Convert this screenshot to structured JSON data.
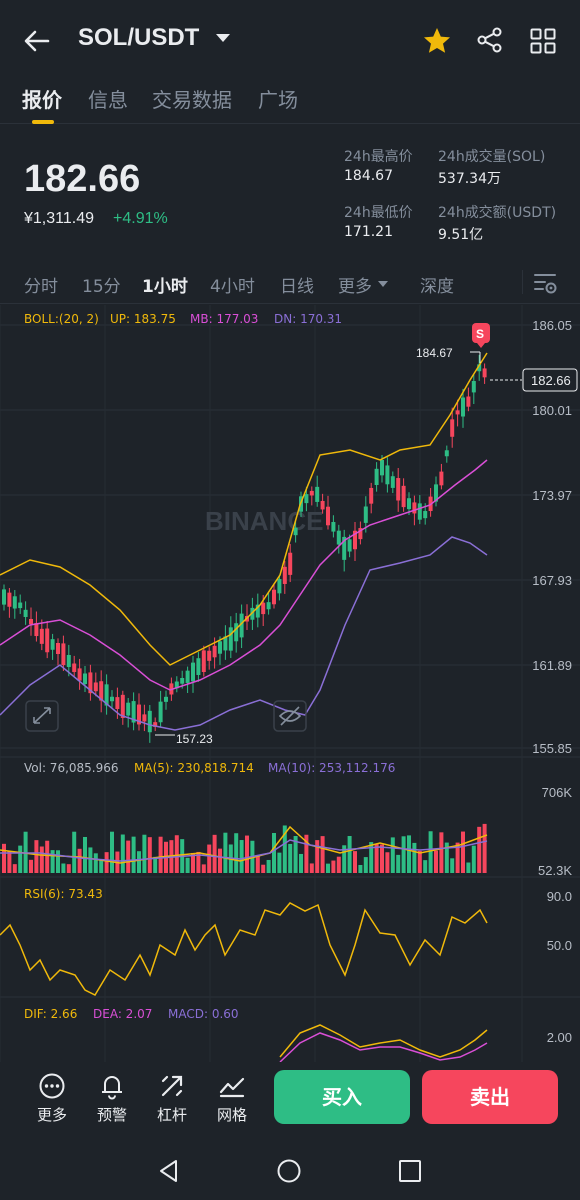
{
  "header": {
    "pair": "SOL/USDT"
  },
  "tabs": [
    "报价",
    "信息",
    "交易数据",
    "广场"
  ],
  "ticker": {
    "price": "182.66",
    "cny": "¥1,311.49",
    "change": "+4.91%",
    "high_label": "24h最高价",
    "high_value": "184.67",
    "low_label": "24h最低价",
    "low_value": "171.21",
    "vol_label": "24h成交量(SOL)",
    "vol_value": "537.34万",
    "amount_label": "24h成交额(USDT)",
    "amount_value": "9.51亿"
  },
  "intervals": [
    "分时",
    "15分",
    "1小时",
    "4小时",
    "日线",
    "更多",
    "深度"
  ],
  "active_interval": "1小时",
  "main_chart": {
    "boll": "BOLL:(20, 2)",
    "up": "UP: 183.75",
    "mb": "MB: 177.03",
    "dn": "DN: 170.31",
    "axis": [
      "186.05",
      "180.01",
      "173.97",
      "167.93",
      "161.89",
      "155.85"
    ],
    "max_label": "184.67",
    "min_label": "157.23",
    "last_price": "182.66",
    "signal": "S",
    "watermark": "BINANCE"
  },
  "volume_chart": {
    "vol": "Vol: 76,085.966",
    "ma5": "MA(5): 230,818.714",
    "ma10": "MA(10): 253,112.176",
    "axis": [
      "706K",
      "52.3K"
    ]
  },
  "rsi_chart": {
    "rsi": "RSI(6): 73.43",
    "axis": [
      "90.0",
      "50.0"
    ]
  },
  "macd_chart": {
    "dif": "DIF: 2.66",
    "dea": "DEA: 2.07",
    "macd": "MACD: 0.60",
    "axis": [
      "2.00"
    ]
  },
  "bottom": {
    "more": "更多",
    "alert": "预警",
    "leverage": "杠杆",
    "grid": "网格",
    "buy": "买入",
    "sell": "卖出"
  },
  "colors": {
    "up": "#2ebd85",
    "down": "#f6465d",
    "accent": "#f0b90b",
    "boll_up": "#f0b90b",
    "boll_mb": "#d94fd6",
    "boll_dn": "#8a6fd6"
  },
  "icons": [
    "back-arrow-icon",
    "star-icon",
    "share-icon",
    "grid-icon",
    "settings-icon",
    "expand-icon",
    "eye-off-icon",
    "more-icon",
    "bell-icon",
    "leverage-icon",
    "grid-trading-icon",
    "nav-back-icon",
    "nav-home-icon",
    "nav-recents-icon"
  ]
}
